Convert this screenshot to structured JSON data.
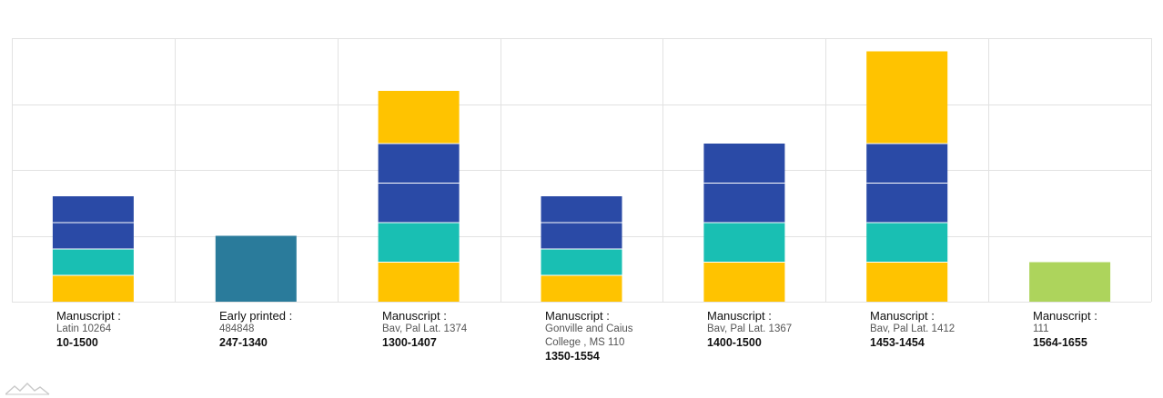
{
  "chart_data": {
    "type": "bar",
    "stacked": true,
    "grid": true,
    "legend": "none",
    "ylim": [
      0,
      4
    ],
    "categories": [
      {
        "kind": "Manuscript :",
        "source": "Latin 10264",
        "dates": "10-1500",
        "segments": [
          {
            "value": 0.4,
            "color": "#FFC300"
          },
          {
            "value": 0.4,
            "color": "#19BFB3"
          },
          {
            "value": 0.4,
            "color": "#2A4AA6"
          },
          {
            "value": 0.4,
            "color": "#2A4AA6"
          }
        ]
      },
      {
        "kind": "Early printed :",
        "source": "484848",
        "dates": "247-1340",
        "segments": [
          {
            "value": 1.0,
            "color": "#2A7B9B"
          }
        ]
      },
      {
        "kind": "Manuscript :",
        "source": "Bav, Pal Lat. 1374",
        "dates": "1300-1407",
        "segments": [
          {
            "value": 0.6,
            "color": "#FFC300"
          },
          {
            "value": 0.6,
            "color": "#19BFB3"
          },
          {
            "value": 0.6,
            "color": "#2A4AA6"
          },
          {
            "value": 0.6,
            "color": "#2A4AA6"
          },
          {
            "value": 0.8,
            "color": "#FFC300"
          }
        ]
      },
      {
        "kind": "Manuscript :",
        "source": "Gonville and Caius College , MS 110",
        "dates": "1350-1554",
        "segments": [
          {
            "value": 0.4,
            "color": "#FFC300"
          },
          {
            "value": 0.4,
            "color": "#19BFB3"
          },
          {
            "value": 0.4,
            "color": "#2A4AA6"
          },
          {
            "value": 0.4,
            "color": "#2A4AA6"
          }
        ]
      },
      {
        "kind": "Manuscript :",
        "source": "Bav, Pal Lat. 1367",
        "dates": "1400-1500",
        "segments": [
          {
            "value": 0.6,
            "color": "#FFC300"
          },
          {
            "value": 0.6,
            "color": "#19BFB3"
          },
          {
            "value": 0.6,
            "color": "#2A4AA6"
          },
          {
            "value": 0.6,
            "color": "#2A4AA6"
          }
        ]
      },
      {
        "kind": "Manuscript :",
        "source": "Bav, Pal Lat. 1412",
        "dates": "1453-1454",
        "segments": [
          {
            "value": 0.6,
            "color": "#FFC300"
          },
          {
            "value": 0.6,
            "color": "#19BFB3"
          },
          {
            "value": 0.6,
            "color": "#2A4AA6"
          },
          {
            "value": 0.6,
            "color": "#2A4AA6"
          },
          {
            "value": 1.4,
            "color": "#FFC300"
          }
        ]
      },
      {
        "kind": "Manuscript :",
        "source": "111",
        "dates": "1564-1655",
        "segments": [
          {
            "value": 0.6,
            "color": "#ADD45C"
          }
        ]
      }
    ],
    "colors": {
      "grid": "#E2E2E2",
      "separator": "#FFFFFF"
    }
  },
  "logo_icon": "mountain-logo-icon"
}
